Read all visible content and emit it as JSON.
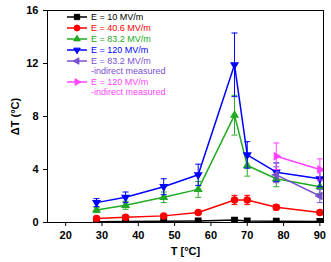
{
  "chart_data": {
    "type": "line",
    "x_label": "T [°C]",
    "y_label": "ΔT (°C)",
    "xlim": [
      15,
      91
    ],
    "xticks": [
      20,
      30,
      40,
      50,
      60,
      70,
      80,
      90
    ],
    "ylim": [
      0,
      16
    ],
    "yticks": [
      0,
      4,
      8,
      12,
      16
    ],
    "legend": "top-left",
    "series": [
      {
        "name": "E = 10 MV/m",
        "color": "#000000",
        "marker": "square",
        "line_style": "solid",
        "x": [
          28.5,
          36.5,
          47,
          56.5,
          66.5,
          70,
          78,
          90
        ],
        "values": [
          0.05,
          0.07,
          0.1,
          0.12,
          0.18,
          0.12,
          0.1,
          0.08
        ]
      },
      {
        "name": "E = 40.6 MV/m",
        "color": "#ff0000",
        "marker": "circle",
        "line_style": "solid",
        "x": [
          28.5,
          36.5,
          47,
          56.5,
          66.5,
          70,
          78,
          90
        ],
        "values": [
          0.3,
          0.4,
          0.5,
          0.75,
          1.7,
          1.7,
          1.15,
          0.75
        ],
        "errors": [
          0.1,
          0.1,
          0.1,
          0.15,
          0.35,
          0.35,
          0.2,
          0.15
        ]
      },
      {
        "name": "E = 83.2 MV/m",
        "color": "#22aa22",
        "marker": "triangle-up",
        "line_style": "solid",
        "x": [
          28.5,
          36.5,
          47,
          56.5,
          66.5,
          70,
          78,
          90
        ],
        "values": [
          0.95,
          1.3,
          1.9,
          2.5,
          8.1,
          4.3,
          3.3,
          2.7
        ],
        "errors": [
          0.2,
          0.3,
          0.4,
          0.6,
          1.5,
          0.8,
          0.6,
          0.5
        ]
      },
      {
        "name": "E = 120 MV/m",
        "color": "#0000ff",
        "marker": "triangle-down",
        "line_style": "solid",
        "x": [
          28.5,
          36.5,
          47,
          56.5,
          66.5,
          70,
          78,
          90
        ],
        "values": [
          1.5,
          1.9,
          2.7,
          3.6,
          11.9,
          5.1,
          3.8,
          3.3
        ],
        "errors": [
          0.3,
          0.4,
          0.6,
          0.8,
          2.4,
          1.0,
          0.7,
          0.6
        ]
      },
      {
        "name": "E = 83.2 MV/m\n-indirect measured",
        "color": "#7a4fd0",
        "marker": "triangle-left",
        "line_style": "solid",
        "x": [
          78,
          90
        ],
        "values": [
          3.6,
          2.0
        ],
        "errors": [
          0.6,
          0.5
        ]
      },
      {
        "name": "E = 120 MV/m\n-indirect measured",
        "color": "#ff44ff",
        "marker": "triangle-right",
        "line_style": "solid",
        "x": [
          78,
          90
        ],
        "values": [
          5.0,
          4.0
        ],
        "errors": [
          1.0,
          0.8
        ]
      }
    ]
  }
}
